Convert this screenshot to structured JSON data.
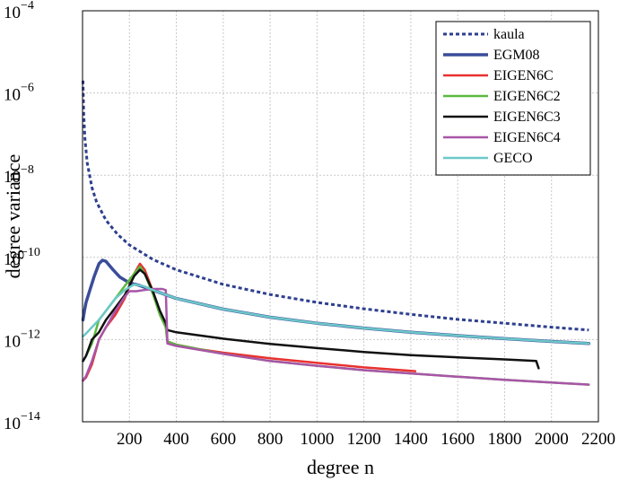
{
  "chart_data": {
    "type": "line",
    "y_scale": "log",
    "xlabel": "degree n",
    "ylabel": "degree variance",
    "xlim": [
      0,
      2200
    ],
    "ylim": [
      1e-14,
      0.0001
    ],
    "grid": true,
    "legend_position": "top-right",
    "x_ticks": [
      {
        "value": 200,
        "label": "200"
      },
      {
        "value": 400,
        "label": "400"
      },
      {
        "value": 600,
        "label": "600"
      },
      {
        "value": 800,
        "label": "800"
      },
      {
        "value": 1000,
        "label": "1000"
      },
      {
        "value": 1200,
        "label": "1200"
      },
      {
        "value": 1400,
        "label": "1400"
      },
      {
        "value": 1600,
        "label": "1600"
      },
      {
        "value": 1800,
        "label": "1800"
      },
      {
        "value": 2000,
        "label": "2000"
      },
      {
        "value": 2200,
        "label": "2200"
      }
    ],
    "y_ticks": [
      {
        "value": 1e-14,
        "base": "10",
        "exp": "−14"
      },
      {
        "value": 1e-12,
        "base": "10",
        "exp": "−12"
      },
      {
        "value": 1e-10,
        "base": "10",
        "exp": "−10"
      },
      {
        "value": 1e-08,
        "base": "10",
        "exp": "−8"
      },
      {
        "value": 1e-06,
        "base": "10",
        "exp": "−6"
      },
      {
        "value": 0.0001,
        "base": "10",
        "exp": "−4"
      }
    ],
    "series": [
      {
        "name": "kaula",
        "color": "#2e3f8f",
        "dashed": true,
        "width": 3,
        "points": [
          [
            2,
            2e-06
          ],
          [
            5,
            3.2e-07
          ],
          [
            10,
            8e-08
          ],
          [
            20,
            2e-08
          ],
          [
            40,
            5e-09
          ],
          [
            60,
            2.2e-09
          ],
          [
            100,
            8e-10
          ],
          [
            150,
            3.6e-10
          ],
          [
            200,
            2e-10
          ],
          [
            300,
            8.9e-11
          ],
          [
            400,
            5e-11
          ],
          [
            600,
            2.2e-11
          ],
          [
            800,
            1.25e-11
          ],
          [
            1000,
            8e-12
          ],
          [
            1200,
            5.6e-12
          ],
          [
            1400,
            4.1e-12
          ],
          [
            1600,
            3.1e-12
          ],
          [
            1800,
            2.5e-12
          ],
          [
            2000,
            2e-12
          ],
          [
            2159,
            1.7e-12
          ]
        ]
      },
      {
        "name": "EGM08",
        "color": "#3a4d9a",
        "dashed": false,
        "width": 3.5,
        "points": [
          [
            2,
            3e-12
          ],
          [
            8,
            5e-12
          ],
          [
            15,
            8e-12
          ],
          [
            30,
            1.5e-11
          ],
          [
            50,
            3.5e-11
          ],
          [
            70,
            7e-11
          ],
          [
            85,
            8.5e-11
          ],
          [
            100,
            8e-11
          ],
          [
            130,
            5e-11
          ],
          [
            160,
            3.3e-11
          ],
          [
            200,
            2.4e-11
          ],
          [
            240,
            2.1e-11
          ],
          [
            300,
            1.6e-11
          ],
          [
            400,
            1e-11
          ],
          [
            600,
            5.5e-12
          ],
          [
            800,
            3.5e-12
          ],
          [
            1000,
            2.5e-12
          ],
          [
            1200,
            1.9e-12
          ],
          [
            1400,
            1.5e-12
          ],
          [
            1600,
            1.25e-12
          ],
          [
            1800,
            1.05e-12
          ],
          [
            2000,
            9e-13
          ],
          [
            2159,
            8e-13
          ]
        ]
      },
      {
        "name": "EIGEN6C",
        "color": "#e8312f",
        "dashed": false,
        "width": 2.5,
        "points": [
          [
            2,
            1e-13
          ],
          [
            15,
            1.2e-13
          ],
          [
            40,
            2.5e-13
          ],
          [
            70,
            1e-12
          ],
          [
            100,
            2e-12
          ],
          [
            140,
            4e-12
          ],
          [
            180,
            1e-11
          ],
          [
            220,
            4e-11
          ],
          [
            245,
            7e-11
          ],
          [
            265,
            5e-11
          ],
          [
            300,
            1.5e-11
          ],
          [
            330,
            4e-12
          ],
          [
            355,
            2e-12
          ],
          [
            362,
            9e-13
          ],
          [
            400,
            7.5e-13
          ],
          [
            500,
            5.8e-13
          ],
          [
            600,
            4.8e-13
          ],
          [
            800,
            3.5e-13
          ],
          [
            1000,
            2.7e-13
          ],
          [
            1200,
            2.1e-13
          ],
          [
            1419,
            1.7e-13
          ]
        ]
      },
      {
        "name": "EIGEN6C2",
        "color": "#5cb840",
        "dashed": false,
        "width": 2.5,
        "points": [
          [
            2,
            3e-13
          ],
          [
            15,
            4e-13
          ],
          [
            40,
            8e-13
          ],
          [
            70,
            3e-12
          ],
          [
            100,
            5e-12
          ],
          [
            140,
            1e-11
          ],
          [
            180,
            2e-11
          ],
          [
            220,
            4e-11
          ],
          [
            245,
            6e-11
          ],
          [
            265,
            4e-11
          ],
          [
            300,
            1.3e-11
          ],
          [
            330,
            4e-12
          ],
          [
            355,
            2e-12
          ],
          [
            362,
            9e-13
          ],
          [
            400,
            7.5e-13
          ],
          [
            600,
            4.5e-13
          ],
          [
            800,
            3e-13
          ],
          [
            1000,
            2.3e-13
          ],
          [
            1200,
            1.8e-13
          ],
          [
            1400,
            1.5e-13
          ],
          [
            1600,
            1.25e-13
          ],
          [
            1800,
            1.05e-13
          ],
          [
            2000,
            9e-14
          ],
          [
            2159,
            8e-14
          ]
        ]
      },
      {
        "name": "EIGEN6C3",
        "color": "#111111",
        "dashed": false,
        "width": 2.5,
        "points": [
          [
            2,
            3e-13
          ],
          [
            15,
            4e-13
          ],
          [
            40,
            1e-12
          ],
          [
            70,
            1.5e-12
          ],
          [
            100,
            3e-12
          ],
          [
            140,
            6e-12
          ],
          [
            180,
            1.2e-11
          ],
          [
            220,
            3.5e-11
          ],
          [
            245,
            5e-11
          ],
          [
            265,
            4e-11
          ],
          [
            300,
            1.5e-11
          ],
          [
            330,
            5e-12
          ],
          [
            355,
            2.5e-12
          ],
          [
            362,
            1.7e-12
          ],
          [
            400,
            1.5e-12
          ],
          [
            600,
            1.05e-12
          ],
          [
            800,
            7.8e-13
          ],
          [
            1000,
            6.2e-13
          ],
          [
            1200,
            5e-13
          ],
          [
            1400,
            4.2e-13
          ],
          [
            1600,
            3.7e-13
          ],
          [
            1800,
            3.3e-13
          ],
          [
            1935,
            3e-13
          ],
          [
            1945,
            2e-13
          ]
        ]
      },
      {
        "name": "EIGEN6C4",
        "color": "#a855a8",
        "dashed": false,
        "width": 2.5,
        "points": [
          [
            2,
            1e-13
          ],
          [
            15,
            1.3e-13
          ],
          [
            40,
            3e-13
          ],
          [
            70,
            1e-12
          ],
          [
            100,
            2e-12
          ],
          [
            140,
            5e-12
          ],
          [
            180,
            1.1e-11
          ],
          [
            200,
            1.5e-11
          ],
          [
            230,
            1.5e-11
          ],
          [
            260,
            1.6e-11
          ],
          [
            300,
            1.7e-11
          ],
          [
            340,
            1.7e-11
          ],
          [
            355,
            1.6e-11
          ],
          [
            362,
            8e-13
          ],
          [
            400,
            7e-13
          ],
          [
            600,
            4.5e-13
          ],
          [
            800,
            3e-13
          ],
          [
            1000,
            2.3e-13
          ],
          [
            1200,
            1.8e-13
          ],
          [
            1400,
            1.5e-13
          ],
          [
            1600,
            1.25e-13
          ],
          [
            1800,
            1.05e-13
          ],
          [
            2000,
            9e-14
          ],
          [
            2159,
            8e-14
          ]
        ]
      },
      {
        "name": "GECO",
        "color": "#6cc8c8",
        "dashed": false,
        "width": 2.5,
        "points": [
          [
            2,
            1.2e-12
          ],
          [
            15,
            1.4e-12
          ],
          [
            40,
            2e-12
          ],
          [
            70,
            3e-12
          ],
          [
            100,
            5e-12
          ],
          [
            140,
            1e-11
          ],
          [
            180,
            1.6e-11
          ],
          [
            220,
            2.2e-11
          ],
          [
            260,
            2e-11
          ],
          [
            300,
            1.6e-11
          ],
          [
            400,
            1e-11
          ],
          [
            600,
            5.5e-12
          ],
          [
            800,
            3.5e-12
          ],
          [
            1000,
            2.5e-12
          ],
          [
            1200,
            1.9e-12
          ],
          [
            1400,
            1.5e-12
          ],
          [
            1600,
            1.25e-12
          ],
          [
            1800,
            1.05e-12
          ],
          [
            2000,
            9e-13
          ],
          [
            2159,
            8e-13
          ]
        ]
      }
    ]
  }
}
